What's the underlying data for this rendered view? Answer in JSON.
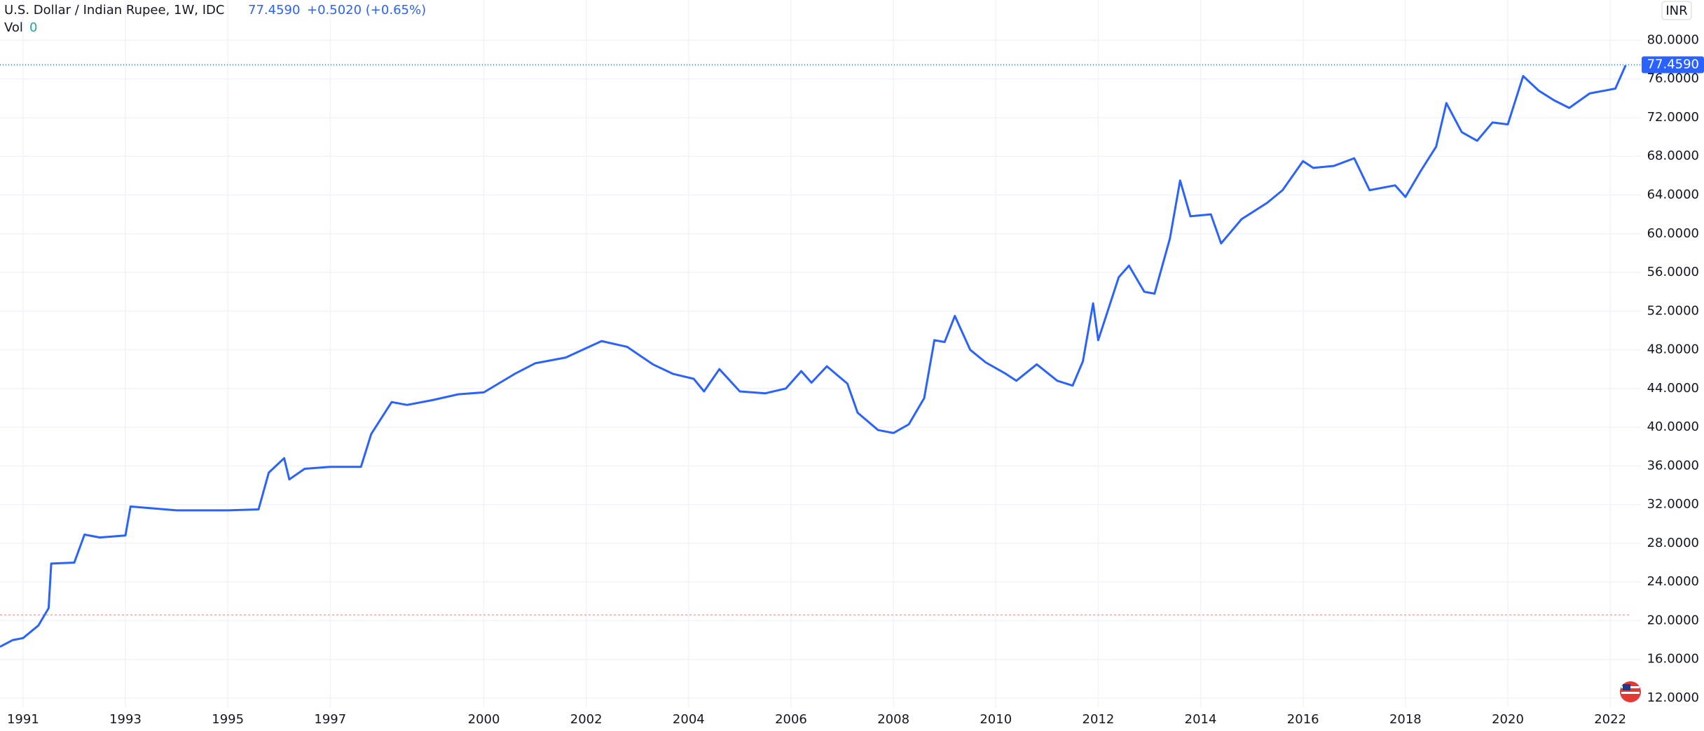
{
  "chart_data": {
    "type": "line",
    "title": "U.S. Dollar / Indian Rupee, 1W, IDC",
    "change": "+0.5020 (+0.65%)",
    "volume": {
      "label": "Vol",
      "value": 0
    },
    "currency": "INR",
    "color": "#2962ff",
    "price_line": {
      "value": 77.459,
      "label": "77.4590"
    },
    "reference_line": 20.6,
    "x": [
      1990.55,
      1990.8,
      1991.0,
      1991.3,
      1991.5,
      1991.55,
      1992.0,
      1992.2,
      1992.5,
      1993.0,
      1993.1,
      1994.0,
      1995.0,
      1995.6,
      1995.8,
      1996.1,
      1996.2,
      1996.5,
      1997.0,
      1997.6,
      1997.8,
      1998.2,
      1998.5,
      1999.0,
      1999.5,
      2000.0,
      2000.6,
      2001.0,
      2001.6,
      2002.3,
      2002.8,
      2003.3,
      2003.7,
      2004.1,
      2004.3,
      2004.6,
      2005.0,
      2005.5,
      2005.9,
      2006.2,
      2006.4,
      2006.7,
      2007.1,
      2007.3,
      2007.7,
      2008.0,
      2008.3,
      2008.6,
      2008.8,
      2009.0,
      2009.2,
      2009.5,
      2009.8,
      2010.2,
      2010.4,
      2010.8,
      2011.2,
      2011.5,
      2011.7,
      2011.9,
      2012.0,
      2012.4,
      2012.6,
      2012.9,
      2013.1,
      2013.4,
      2013.6,
      2013.8,
      2014.2,
      2014.4,
      2014.8,
      2015.3,
      2015.6,
      2016.0,
      2016.2,
      2016.6,
      2017.0,
      2017.3,
      2017.8,
      2018.0,
      2018.3,
      2018.6,
      2018.8,
      2019.1,
      2019.4,
      2019.7,
      2020.0,
      2020.3,
      2020.6,
      2020.9,
      2021.2,
      2021.6,
      2021.9,
      2022.1,
      2022.3
    ],
    "values": [
      17.3,
      18.0,
      18.2,
      19.5,
      21.3,
      25.9,
      26.0,
      28.9,
      28.6,
      28.8,
      31.8,
      31.4,
      31.4,
      31.5,
      35.3,
      36.8,
      34.6,
      35.7,
      35.9,
      35.9,
      39.3,
      42.6,
      42.3,
      42.8,
      43.4,
      43.6,
      45.5,
      46.6,
      47.2,
      48.9,
      48.3,
      46.5,
      45.5,
      45.0,
      43.7,
      46.0,
      43.7,
      43.5,
      44.0,
      45.8,
      44.6,
      46.3,
      44.5,
      41.5,
      39.7,
      39.4,
      40.3,
      43.0,
      49.0,
      48.8,
      51.5,
      48.0,
      46.7,
      45.5,
      44.8,
      46.5,
      44.8,
      44.3,
      46.8,
      52.8,
      49.0,
      55.5,
      56.7,
      54.0,
      53.8,
      59.5,
      65.5,
      61.8,
      62.0,
      59.0,
      61.5,
      63.2,
      64.5,
      67.5,
      66.8,
      67.0,
      67.8,
      64.5,
      65.0,
      63.8,
      66.5,
      69.0,
      73.5,
      70.5,
      69.6,
      71.5,
      71.3,
      76.3,
      74.8,
      73.8,
      73.0,
      74.5,
      74.8,
      75.0,
      77.4
    ],
    "xlim": [
      1990.55,
      2022.6
    ],
    "xticks": [
      1991,
      1993,
      1995,
      1997,
      2000,
      2002,
      2004,
      2006,
      2008,
      2010,
      2012,
      2014,
      2016,
      2018,
      2020,
      2022
    ],
    "ylim": [
      10,
      82
    ],
    "yticks": [
      {
        "value": 12,
        "label": "12.0000"
      },
      {
        "value": 16,
        "label": "16.0000"
      },
      {
        "value": 20,
        "label": "20.0000"
      },
      {
        "value": 24,
        "label": "24.0000"
      },
      {
        "value": 28,
        "label": "28.0000"
      },
      {
        "value": 32,
        "label": "32.0000"
      },
      {
        "value": 36,
        "label": "36.0000"
      },
      {
        "value": 40,
        "label": "40.0000"
      },
      {
        "value": 44,
        "label": "44.0000"
      },
      {
        "value": 48,
        "label": "48.0000"
      },
      {
        "value": 52,
        "label": "52.0000"
      },
      {
        "value": 56,
        "label": "56.0000"
      },
      {
        "value": 60,
        "label": "60.0000"
      },
      {
        "value": 64,
        "label": "64.0000"
      },
      {
        "value": 68,
        "label": "68.0000"
      },
      {
        "value": 72,
        "label": "72.0000"
      },
      {
        "value": 76,
        "label": "76.0000"
      },
      {
        "value": 80,
        "label": "80.0000"
      }
    ],
    "grid": true
  }
}
